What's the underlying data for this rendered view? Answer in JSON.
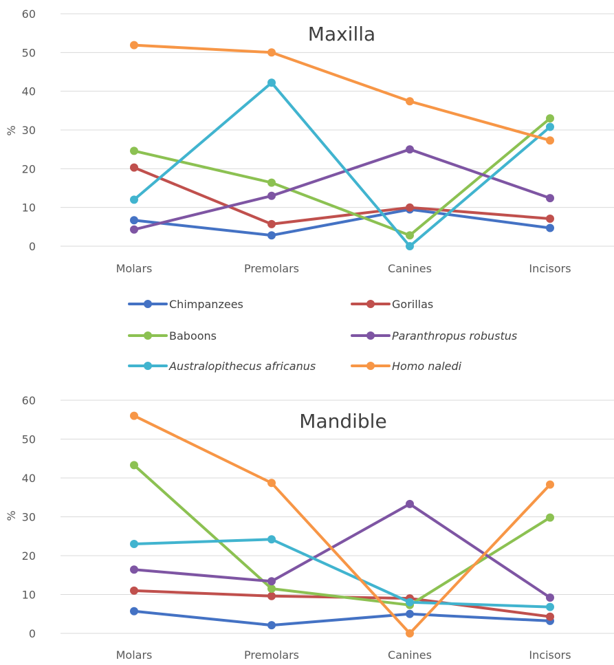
{
  "chart_data": [
    {
      "type": "line",
      "title": "Maxilla",
      "ylabel": "%",
      "xlabel": "",
      "ylim": [
        0,
        60
      ],
      "yticks": [
        "0",
        "10",
        "20",
        "30",
        "40",
        "50",
        "60"
      ],
      "grid": true,
      "categories": [
        "Molars",
        "Premolars",
        "Canines",
        "Incisors"
      ],
      "series": [
        {
          "name": "Chimpanzees",
          "color": "#4472c4",
          "values": [
            6.7,
            2.8,
            9.5,
            4.7
          ]
        },
        {
          "name": "Gorillas",
          "color": "#c0504d",
          "values": [
            20.3,
            5.7,
            10.0,
            7.1
          ]
        },
        {
          "name": "Baboons",
          "color": "#8cc152",
          "values": [
            24.6,
            16.4,
            2.8,
            33.0
          ]
        },
        {
          "name": "Paranthropus robustus",
          "color": "#7e55a3",
          "values": [
            4.3,
            13.0,
            25.0,
            12.4
          ]
        },
        {
          "name": "Australopithecus africanus",
          "color": "#41b4cf",
          "values": [
            12.0,
            42.2,
            0.0,
            30.8
          ]
        },
        {
          "name": "Homo naledi",
          "color": "#f79646",
          "values": [
            51.9,
            50.0,
            37.4,
            27.3
          ]
        }
      ],
      "legend": {
        "placement": "bottom",
        "entries": [
          {
            "label": "Chimpanzees",
            "italic": false
          },
          {
            "label": "Gorillas",
            "italic": false
          },
          {
            "label": "Baboons",
            "italic": false
          },
          {
            "label": "Paranthropus robustus",
            "italic": true
          },
          {
            "label": "Australopithecus africanus",
            "italic": true
          },
          {
            "label": "Homo naledi",
            "italic": true
          }
        ]
      }
    },
    {
      "type": "line",
      "title": "Mandible",
      "ylabel": "%",
      "xlabel": "",
      "ylim": [
        0,
        60
      ],
      "yticks": [
        "0",
        "10",
        "20",
        "30",
        "40",
        "50",
        "60"
      ],
      "grid": true,
      "categories": [
        "Molars",
        "Premolars",
        "Canines",
        "Incisors"
      ],
      "series": [
        {
          "name": "Chimpanzees",
          "color": "#4472c4",
          "values": [
            5.7,
            2.1,
            5.0,
            3.2
          ]
        },
        {
          "name": "Gorillas",
          "color": "#c0504d",
          "values": [
            11.0,
            9.6,
            9.0,
            4.3
          ]
        },
        {
          "name": "Baboons",
          "color": "#8cc152",
          "values": [
            43.3,
            11.5,
            7.3,
            29.8
          ]
        },
        {
          "name": "Paranthropus robustus",
          "color": "#7e55a3",
          "values": [
            16.4,
            13.4,
            33.3,
            9.2
          ]
        },
        {
          "name": "Australopithecus africanus",
          "color": "#41b4cf",
          "values": [
            23.0,
            24.2,
            8.0,
            6.8
          ]
        },
        {
          "name": "Homo naledi",
          "color": "#f79646",
          "values": [
            56.0,
            38.7,
            0.0,
            38.3
          ]
        }
      ]
    }
  ]
}
